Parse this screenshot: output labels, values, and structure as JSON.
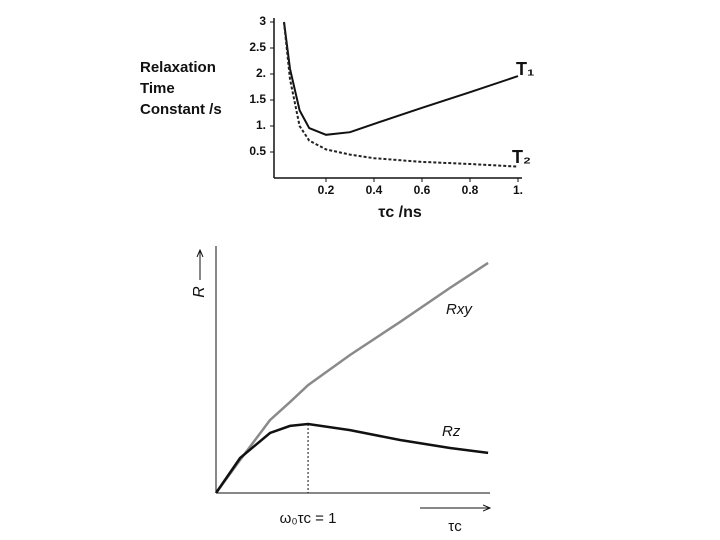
{
  "chart_data": [
    {
      "type": "line",
      "ylabel": [
        "Relaxation",
        "Time",
        "Constant /s"
      ],
      "xlabel": "τc /ns",
      "x": [
        0.025,
        0.05,
        0.09,
        0.13,
        0.2,
        0.3,
        0.4,
        0.6,
        0.8,
        1.0
      ],
      "series": [
        {
          "name": "T₁",
          "color": "#111111",
          "dash": false,
          "values": [
            3.0,
            2.1,
            1.3,
            0.96,
            0.83,
            0.88,
            1.04,
            1.35,
            1.65,
            1.96
          ]
        },
        {
          "name": "T₂",
          "color": "#222222",
          "dash": true,
          "values": [
            3.0,
            1.9,
            1.0,
            0.72,
            0.55,
            0.45,
            0.38,
            0.31,
            0.27,
            0.22
          ]
        }
      ],
      "xlim": [
        0,
        1.0
      ],
      "ylim": [
        0,
        3
      ],
      "xticks": [
        0.2,
        0.4,
        0.6,
        0.8,
        {
          "value": 1,
          "label": "1."
        }
      ],
      "yticks": [
        0.5,
        {
          "value": 1,
          "label": "1."
        },
        1.5,
        {
          "value": 2,
          "label": "2."
        },
        2.5,
        3
      ]
    },
    {
      "type": "line",
      "ylabel": "R",
      "xlabel": "τc",
      "annotation": {
        "text": "ω₀τc = 1",
        "x": 3.36
      },
      "x": [
        0,
        0.88,
        1.97,
        2.7,
        3.36,
        4.89,
        6.72,
        8.54,
        9.93
      ],
      "series": [
        {
          "name": "Rxy",
          "color": "#8a8a8a",
          "dash": false,
          "values": [
            0,
            1.36,
            3.0,
            3.74,
            4.44,
            5.68,
            7.04,
            8.44,
            9.47
          ]
        },
        {
          "name": "Rz",
          "color": "#111111",
          "dash": false,
          "values": [
            0,
            1.44,
            2.47,
            2.76,
            2.84,
            2.59,
            2.18,
            1.85,
            1.65
          ]
        }
      ],
      "xlim": [
        0,
        10
      ],
      "ylim": [
        0,
        10
      ]
    }
  ]
}
